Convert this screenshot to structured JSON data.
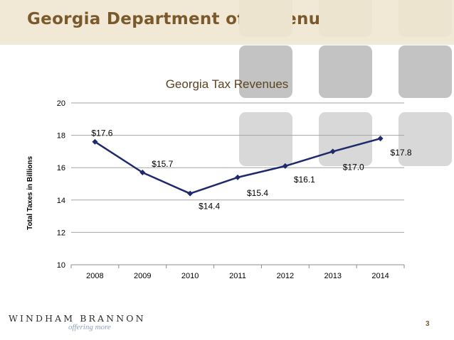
{
  "slide": {
    "title": "Georgia Department of Revenue",
    "page_number": "3",
    "logo": {
      "name": "WINDHAM BRANNON",
      "tagline": "offering more"
    },
    "colors": {
      "title": "#7a5a2c",
      "header_bg": "#f1e9d6",
      "series": "#1f2a6b",
      "decor_box": "#d8d8d8"
    }
  },
  "chart_data": {
    "type": "line",
    "title": "Georgia Tax Revenues",
    "xlabel": "",
    "ylabel": "Total Taxes in Billions",
    "categories": [
      "2008",
      "2009",
      "2010",
      "2011",
      "2012",
      "2013",
      "2014"
    ],
    "series": [
      {
        "values": [
          17.6,
          15.7,
          14.4,
          15.4,
          16.1,
          17.0,
          17.8
        ],
        "color": "#1f2a6b"
      }
    ],
    "data_labels": [
      "$17.6",
      "$15.7",
      "$14.4",
      "$15.4",
      "$16.1",
      "$17.0",
      "$17.8"
    ],
    "ylim": [
      10,
      20
    ],
    "yticks": [
      10,
      12,
      14,
      16,
      18,
      20
    ],
    "grid": true,
    "legend": "none"
  }
}
